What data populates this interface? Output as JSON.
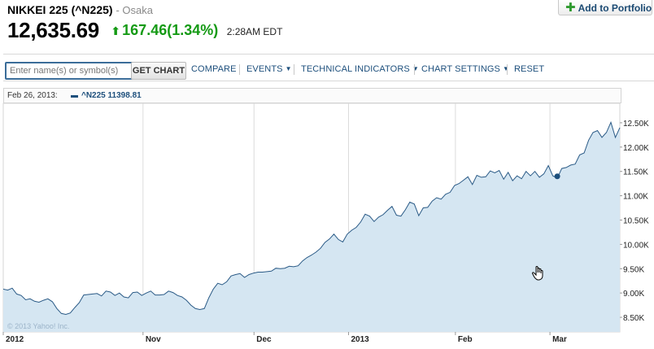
{
  "header": {
    "title": "NIKKEI 225 (^N225)",
    "exchange": "- Osaka",
    "price": "12,635.69",
    "change": "167.46(1.34%)",
    "change_direction": "up-arrow-icon",
    "time": "2:28AM EDT",
    "portfolio_label": "Add to Portfolio",
    "colors": {
      "up": "#159a15",
      "link": "#1d4f7c"
    }
  },
  "toolbar": {
    "search_placeholder": "Enter name(s) or symbol(s)",
    "get_chart": "GET CHART",
    "compare": "COMPARE",
    "events": "EVENTS",
    "technical": "TECHNICAL INDICATORS",
    "settings": "CHART SETTINGS",
    "reset": "RESET"
  },
  "legend": {
    "date": "Feb 26, 2013:",
    "series": "^N225",
    "value": "11398.81"
  },
  "copyright": "© 2013 Yahoo! Inc.",
  "chart_data": {
    "type": "area",
    "y_axis_position": "right",
    "grid": "vertical",
    "ylim": [
      8200,
      12900
    ],
    "xlim": [
      0,
      150
    ],
    "y_ticks": [
      {
        "value": 12500,
        "label": "12.50K"
      },
      {
        "value": 12000,
        "label": "12.00K"
      },
      {
        "value": 11500,
        "label": "11.50K"
      },
      {
        "value": 11000,
        "label": "11.00K"
      },
      {
        "value": 10500,
        "label": "10.50K"
      },
      {
        "value": 10000,
        "label": "10.00K"
      },
      {
        "value": 9500,
        "label": "9.50K"
      },
      {
        "value": 9000,
        "label": "9.00K"
      },
      {
        "value": 8500,
        "label": "8.50K"
      }
    ],
    "x_ticks": [
      {
        "value": 0,
        "label": "2012"
      },
      {
        "value": 34,
        "label": "Nov"
      },
      {
        "value": 61,
        "label": "Dec"
      },
      {
        "value": 84,
        "label": "2013"
      },
      {
        "value": 110,
        "label": "Feb"
      },
      {
        "value": 133,
        "label": "Mar"
      }
    ],
    "series": [
      {
        "values": [
          9080,
          9060,
          9100,
          8980,
          8950,
          8860,
          8880,
          8830,
          8810,
          8850,
          8880,
          8820,
          8680,
          8580,
          8560,
          8590,
          8700,
          8800,
          8960,
          8970,
          8980,
          8990,
          8940,
          9040,
          9020,
          8950,
          9000,
          8920,
          8900,
          9010,
          9020,
          8950,
          9000,
          9040,
          8960,
          8960,
          8970,
          9040,
          9010,
          8950,
          8920,
          8850,
          8750,
          8680,
          8660,
          8680,
          8900,
          9080,
          9200,
          9170,
          9230,
          9350,
          9380,
          9400,
          9320,
          9380,
          9410,
          9430,
          9430,
          9440,
          9450,
          9510,
          9500,
          9510,
          9550,
          9540,
          9560,
          9660,
          9730,
          9780,
          9840,
          9920,
          10040,
          10110,
          10210,
          10100,
          10050,
          10210,
          10290,
          10350,
          10460,
          10620,
          10580,
          10470,
          10560,
          10610,
          10700,
          10780,
          10600,
          10580,
          10710,
          10870,
          10830,
          10590,
          10750,
          10760,
          10890,
          10960,
          10930,
          11030,
          11070,
          11210,
          11250,
          11320,
          11390,
          11230,
          11420,
          11380,
          11390,
          11510,
          11470,
          11520,
          11340,
          11480,
          11310,
          11410,
          11350,
          11500,
          11410,
          11500,
          11380,
          11450,
          11620,
          11410,
          11360,
          11560,
          11580,
          11630,
          11650,
          11840,
          11880,
          12140,
          12300,
          12340,
          12200,
          12300,
          12510,
          12200,
          12400
        ]
      }
    ],
    "highlight": {
      "index": 124,
      "value": 11398.81
    }
  }
}
